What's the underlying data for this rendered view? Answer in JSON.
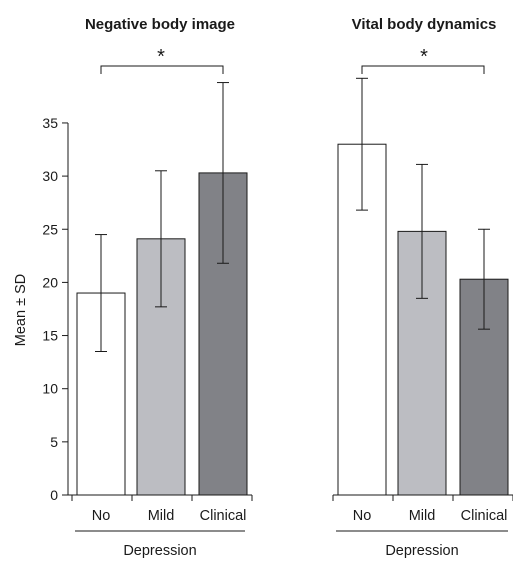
{
  "chart_data": [
    {
      "type": "bar",
      "title": "Negative body image",
      "ylabel": "Mean ± SD",
      "group_label": "Depression",
      "categories": [
        "No",
        "Mild",
        "Clinical"
      ],
      "values": [
        19.0,
        24.1,
        30.3
      ],
      "error_sd": [
        5.5,
        6.4,
        8.5
      ],
      "ylim": [
        0,
        35
      ],
      "yticks": [
        "0",
        "5",
        "10",
        "15",
        "20",
        "25",
        "30",
        "35"
      ],
      "significance": "*",
      "colors": [
        "#ffffff",
        "#bcbdc2",
        "#818287"
      ]
    },
    {
      "type": "bar",
      "title": "Vital body dynamics",
      "ylabel": "",
      "group_label": "Depression",
      "categories": [
        "No",
        "Mild",
        "Clinical"
      ],
      "values": [
        33.0,
        24.8,
        20.3
      ],
      "error_sd": [
        6.2,
        6.3,
        4.7
      ],
      "ylim": [
        0,
        35
      ],
      "significance": "*",
      "colors": [
        "#ffffff",
        "#bcbdc2",
        "#818287"
      ]
    }
  ]
}
